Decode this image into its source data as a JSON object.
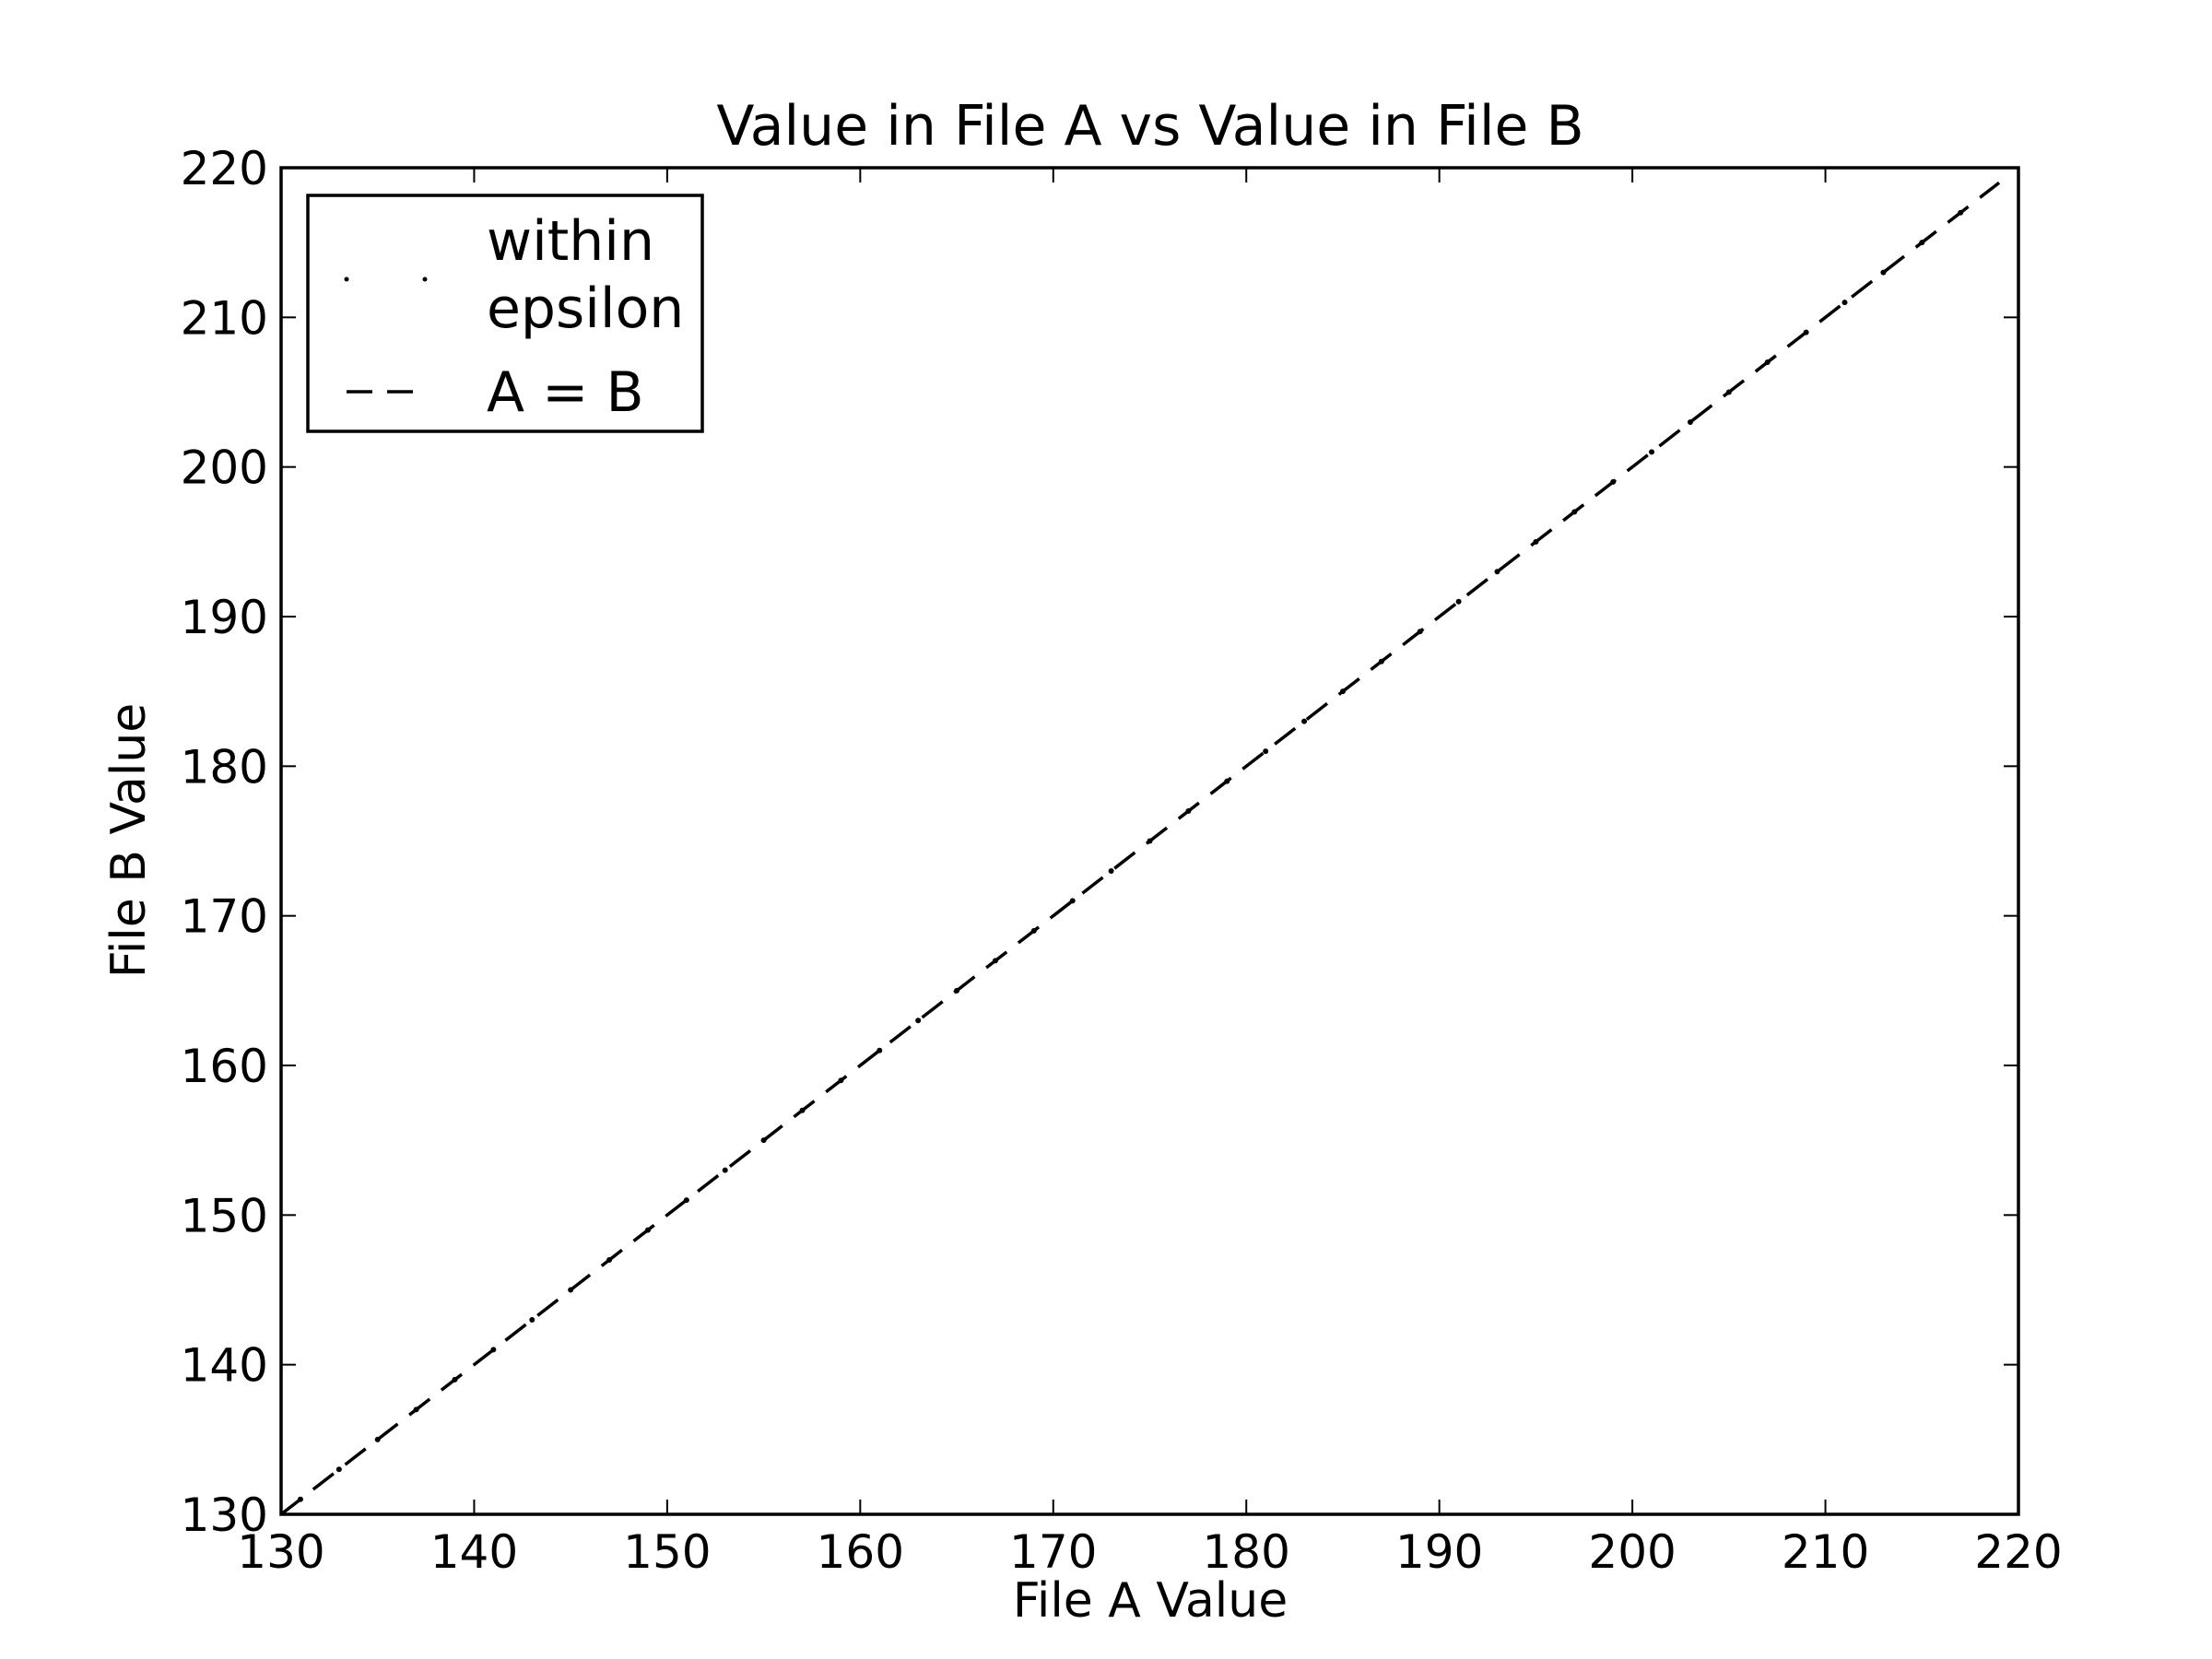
{
  "chart_data": {
    "type": "scatter",
    "title": "Value in File A vs Value in File B",
    "xlabel": "File A Value",
    "ylabel": "File B Value",
    "xlim": [
      130,
      220
    ],
    "ylim": [
      130,
      220
    ],
    "xticks": [
      "130",
      "140",
      "150",
      "160",
      "170",
      "180",
      "190",
      "200",
      "210",
      "220"
    ],
    "yticks": [
      "130",
      "140",
      "150",
      "160",
      "170",
      "180",
      "190",
      "200",
      "210",
      "220"
    ],
    "grid": false,
    "legend_position": "top-left",
    "series": [
      {
        "name": "within\nepsilon",
        "legend_lines": [
          "within",
          "epsilon"
        ],
        "marker": "point",
        "color": "#000000",
        "x": [
          131,
          133,
          135,
          137,
          139,
          141,
          143,
          145,
          147,
          149,
          151,
          153,
          155,
          157,
          159,
          161,
          163,
          165,
          167,
          169,
          171,
          173,
          175,
          177,
          179,
          181,
          183,
          185,
          187,
          189,
          191,
          193,
          195,
          197,
          199,
          201,
          203,
          205,
          207,
          209,
          211,
          213,
          215,
          217
        ],
        "y": [
          131,
          133,
          135,
          137,
          139,
          141,
          143,
          145,
          147,
          149,
          151,
          153,
          155,
          157,
          159,
          161,
          163,
          165,
          167,
          169,
          171,
          173,
          175,
          177,
          179,
          181,
          183,
          185,
          187,
          189,
          191,
          193,
          195,
          197,
          199,
          201,
          203,
          205,
          207,
          209,
          211,
          213,
          215,
          217
        ]
      },
      {
        "name": "A = B",
        "legend_lines": [
          "A = B"
        ],
        "style": "dashed",
        "color": "#000000",
        "x": [
          130,
          219
        ],
        "y": [
          130,
          219
        ]
      }
    ]
  }
}
